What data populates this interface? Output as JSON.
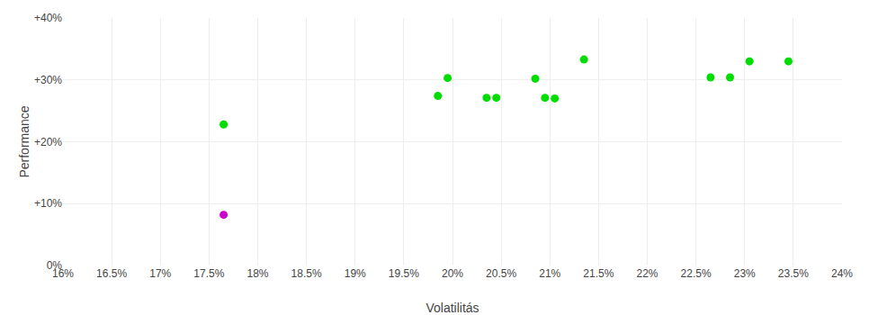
{
  "chart_data": {
    "type": "scatter",
    "xlabel": "Volatilitás",
    "ylabel": "Performance",
    "xlim": [
      0.16,
      0.24
    ],
    "ylim": [
      0.0,
      0.4
    ],
    "xticks": [
      {
        "value": 0.16,
        "label": "16%"
      },
      {
        "value": 0.165,
        "label": "16.5%"
      },
      {
        "value": 0.17,
        "label": "17%"
      },
      {
        "value": 0.175,
        "label": "17.5%"
      },
      {
        "value": 0.18,
        "label": "18%"
      },
      {
        "value": 0.185,
        "label": "18.5%"
      },
      {
        "value": 0.19,
        "label": "19%"
      },
      {
        "value": 0.195,
        "label": "19.5%"
      },
      {
        "value": 0.2,
        "label": "20%"
      },
      {
        "value": 0.205,
        "label": "20.5%"
      },
      {
        "value": 0.21,
        "label": "21%"
      },
      {
        "value": 0.215,
        "label": "21.5%"
      },
      {
        "value": 0.22,
        "label": "22%"
      },
      {
        "value": 0.225,
        "label": "22.5%"
      },
      {
        "value": 0.23,
        "label": "23%"
      },
      {
        "value": 0.235,
        "label": "23.5%"
      },
      {
        "value": 0.24,
        "label": "24%"
      }
    ],
    "yticks": [
      {
        "value": 0.0,
        "label": "0%"
      },
      {
        "value": 0.1,
        "label": "+10%"
      },
      {
        "value": 0.2,
        "label": "+20%"
      },
      {
        "value": 0.3,
        "label": "+30%"
      },
      {
        "value": 0.4,
        "label": "+40%"
      }
    ],
    "grid": true,
    "series": [
      {
        "color": "#00dd00",
        "x": [
          0.1765,
          0.1985,
          0.1995,
          0.2035,
          0.2045,
          0.2085,
          0.2095,
          0.2105,
          0.2135,
          0.2265,
          0.2285,
          0.2305,
          0.2345
        ],
        "values": [
          0.228,
          0.274,
          0.303,
          0.271,
          0.271,
          0.302,
          0.271,
          0.27,
          0.333,
          0.304,
          0.304,
          0.33,
          0.33
        ]
      },
      {
        "color": "#cc00cc",
        "x": [
          0.1765
        ],
        "values": [
          0.082
        ]
      }
    ]
  }
}
